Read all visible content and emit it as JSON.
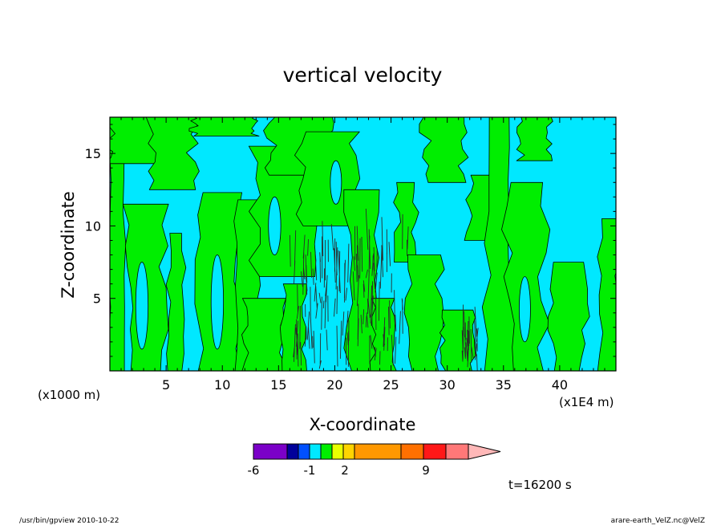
{
  "chart_data": {
    "type": "heatmap",
    "title": "vertical velocity",
    "xlabel": "X-coordinate",
    "ylabel": "Z-coordinate",
    "x_unit_left": "(x1000 m)",
    "x_unit_right": "(x1E4 m)",
    "xlim": [
      0,
      45
    ],
    "ylim": [
      0,
      17.5
    ],
    "x_ticks": [
      5,
      10,
      15,
      20,
      25,
      30,
      35,
      40
    ],
    "y_ticks": [
      5,
      10,
      15
    ],
    "palette": {
      "negative_fill": "#00e8ff",
      "positive_fill": "#00ee00",
      "contour": "#000000"
    },
    "colorbar": {
      "tick_labels": [
        "-6",
        "-1",
        "2",
        "9"
      ],
      "colors": [
        "#7b00c8",
        "#00009a",
        "#0050ff",
        "#00e8ff",
        "#00ee00",
        "#e8ff00",
        "#ffd400",
        "#ff9800",
        "#ff7000",
        "#ff1818",
        "#ff7878",
        "#ffb8b8"
      ]
    },
    "time_label": "t=16200 s"
  },
  "footer": {
    "left": "/usr/bin/gpview   2010-10-22",
    "right": "arare-earth_VelZ.nc@VelZ"
  }
}
